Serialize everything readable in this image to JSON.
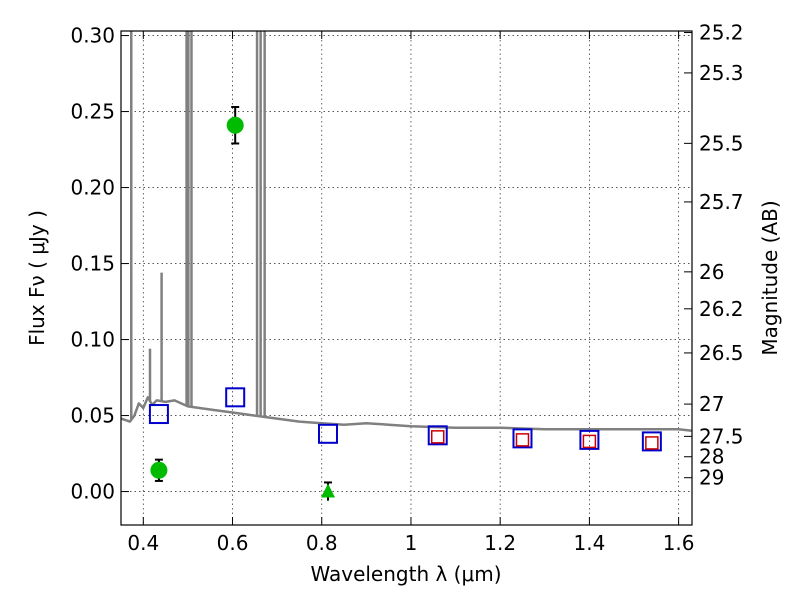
{
  "chart_data": {
    "type": "scatter",
    "title": "",
    "xlabel": "Wavelength  λ (μm)",
    "ylabel": "Flux  Fν  ( μJy )",
    "y2label": "Magnitude (AB)",
    "xlim": [
      0.35,
      1.63
    ],
    "ylim": [
      -0.022,
      0.303
    ],
    "grid": true,
    "x_ticks": [
      0.4,
      0.6,
      0.8,
      1.0,
      1.2,
      1.4,
      1.6
    ],
    "x_tick_labels": [
      "0.4",
      "0.6",
      "0.8",
      "1",
      "1.2",
      "1.4",
      "1.6"
    ],
    "y_ticks": [
      0.0,
      0.05,
      0.1,
      0.15,
      0.2,
      0.25,
      0.3
    ],
    "y_tick_labels": [
      "0.00",
      "0.05",
      "0.10",
      "0.15",
      "0.20",
      "0.25",
      "0.30"
    ],
    "y2_ticks": [
      25.2,
      25.3,
      25.5,
      25.7,
      26,
      26.2,
      26.5,
      27,
      27.5,
      28,
      29
    ],
    "y2_tick_labels": [
      "25.2",
      "25.3",
      "25.5",
      "25.7",
      "26",
      "26.2",
      "26.5",
      "27",
      "27.5",
      "28",
      "29"
    ],
    "series": [
      {
        "kind": "model_spectrum",
        "color": "#808080",
        "points": [
          [
            0.35,
            0.048
          ],
          [
            0.37,
            0.046
          ],
          [
            0.38,
            0.05
          ],
          [
            0.39,
            0.058
          ],
          [
            0.4,
            0.055
          ],
          [
            0.41,
            0.062
          ],
          [
            0.42,
            0.057
          ],
          [
            0.43,
            0.06
          ],
          [
            0.45,
            0.059
          ],
          [
            0.47,
            0.06
          ],
          [
            0.5,
            0.056
          ],
          [
            0.55,
            0.054
          ],
          [
            0.6,
            0.052
          ],
          [
            0.65,
            0.05
          ],
          [
            0.7,
            0.048
          ],
          [
            0.75,
            0.046
          ],
          [
            0.8,
            0.045
          ],
          [
            0.85,
            0.044
          ],
          [
            0.9,
            0.045
          ],
          [
            0.95,
            0.044
          ],
          [
            1.0,
            0.043
          ],
          [
            1.1,
            0.042
          ],
          [
            1.2,
            0.042
          ],
          [
            1.3,
            0.041
          ],
          [
            1.4,
            0.041
          ],
          [
            1.5,
            0.041
          ],
          [
            1.6,
            0.041
          ],
          [
            1.63,
            0.04
          ]
        ],
        "emission_lines": [
          {
            "x": 0.373,
            "peak": 0.303
          },
          {
            "x": 0.415,
            "peak": 0.094
          },
          {
            "x": 0.441,
            "peak": 0.144
          },
          {
            "x": 0.497,
            "peak": 0.303
          },
          {
            "x": 0.501,
            "peak": 0.303
          },
          {
            "x": 0.508,
            "peak": 0.303
          },
          {
            "x": 0.655,
            "peak": 0.303
          },
          {
            "x": 0.663,
            "peak": 0.303
          },
          {
            "x": 0.672,
            "peak": 0.303
          }
        ]
      },
      {
        "kind": "model_photometry",
        "marker": "open_square",
        "color": "#0000cc",
        "points": [
          [
            0.435,
            0.051
          ],
          [
            0.606,
            0.062
          ],
          [
            0.814,
            0.038
          ],
          [
            1.06,
            0.037
          ],
          [
            1.25,
            0.035
          ],
          [
            1.4,
            0.034
          ],
          [
            1.54,
            0.033
          ]
        ]
      },
      {
        "kind": "observed_photometry",
        "marker": "open_square_small",
        "color": "#cc0000",
        "points": [
          [
            1.06,
            0.036
          ],
          [
            1.25,
            0.034
          ],
          [
            1.4,
            0.033
          ],
          [
            1.54,
            0.032
          ]
        ]
      },
      {
        "kind": "detections",
        "marker": "filled_circle",
        "color": "#00bb00",
        "points": [
          {
            "x": 0.435,
            "y": 0.014,
            "err": 0.007
          },
          {
            "x": 0.606,
            "y": 0.241,
            "err": 0.012
          }
        ]
      },
      {
        "kind": "upper_limit",
        "marker": "filled_triangle",
        "color": "#00bb00",
        "points": [
          {
            "x": 0.814,
            "y": 0.0,
            "err": 0.006
          }
        ]
      }
    ]
  }
}
